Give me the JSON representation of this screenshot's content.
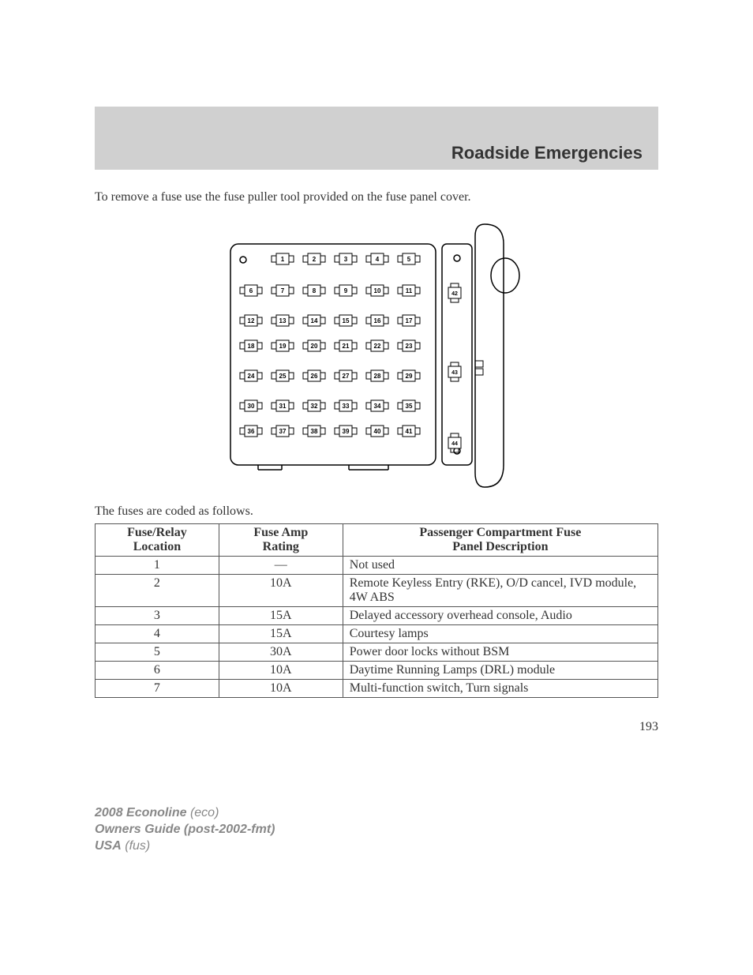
{
  "header": {
    "title": "Roadside Emergencies"
  },
  "intro_text": "To remove a fuse use the fuse puller tool provided on the fuse panel cover.",
  "table_caption": "The fuses are coded as follows.",
  "fuse_diagram": {
    "type": "diagram",
    "main_panel": {
      "rows": [
        {
          "offset": true,
          "numbers": [
            1,
            2,
            3,
            4,
            5
          ]
        },
        {
          "offset": false,
          "numbers": [
            6,
            7,
            8,
            9,
            10,
            11
          ]
        },
        {
          "offset": false,
          "numbers": [
            12,
            13,
            14,
            15,
            16,
            17
          ]
        },
        {
          "offset": false,
          "numbers": [
            18,
            19,
            20,
            21,
            22,
            23
          ]
        },
        {
          "offset": false,
          "numbers": [
            24,
            25,
            26,
            27,
            28,
            29
          ]
        },
        {
          "offset": false,
          "numbers": [
            30,
            31,
            32,
            33,
            34,
            35
          ]
        },
        {
          "offset": false,
          "numbers": [
            36,
            37,
            38,
            39,
            40,
            41
          ]
        }
      ],
      "stroke_color": "#000000",
      "stroke_width": 1.5,
      "fuse_width": 28,
      "fuse_height": 14,
      "fuse_font_size": 8,
      "row_spacing_first": 30,
      "row_spacing": 40,
      "special_row_groups": [
        [
          2,
          3
        ],
        [
          5,
          6
        ]
      ]
    },
    "side_panel": {
      "relays": [
        42,
        43,
        44
      ],
      "stroke_color": "#000000"
    },
    "clip": {
      "present": true
    }
  },
  "table": {
    "columns": [
      {
        "header_lines": [
          "Fuse/Relay",
          "Location"
        ],
        "align": "center",
        "width_pct": 22
      },
      {
        "header_lines": [
          "Fuse Amp",
          "Rating"
        ],
        "align": "center",
        "width_pct": 22
      },
      {
        "header_lines": [
          "Passenger Compartment Fuse",
          "Panel Description"
        ],
        "align": "left",
        "width_pct": 56
      }
    ],
    "rows": [
      [
        "1",
        "—",
        "Not used"
      ],
      [
        "2",
        "10A",
        "Remote Keyless Entry (RKE), O/D cancel, IVD module, 4W ABS"
      ],
      [
        "3",
        "15A",
        "Delayed accessory overhead console, Audio"
      ],
      [
        "4",
        "15A",
        "Courtesy lamps"
      ],
      [
        "5",
        "30A",
        "Power door locks without BSM"
      ],
      [
        "6",
        "10A",
        "Daytime Running Lamps (DRL) module"
      ],
      [
        "7",
        "10A",
        "Multi-function switch, Turn signals"
      ]
    ]
  },
  "page_number": "193",
  "footer": {
    "line1_bold": "2008 Econoline",
    "line1_italic": "(eco)",
    "line2_bold": "Owners Guide (post-2002-fmt)",
    "line3_bold": "USA",
    "line3_italic": "(fus)"
  }
}
